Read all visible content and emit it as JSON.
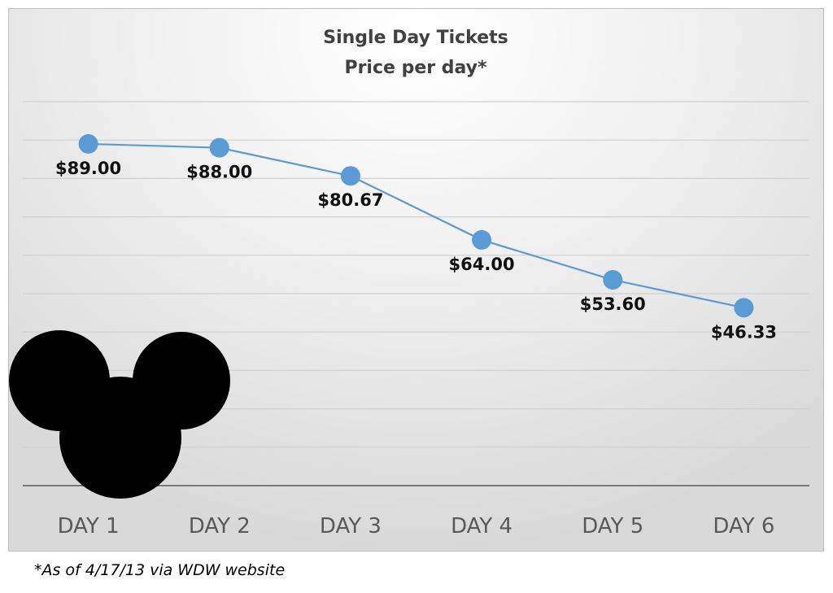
{
  "chart_data": {
    "type": "line",
    "title": "Single Day Tickets",
    "subtitle": "Price per day*",
    "categories": [
      "DAY 1",
      "DAY 2",
      "DAY 3",
      "DAY 4",
      "DAY 5",
      "DAY 6"
    ],
    "values": [
      89.0,
      88.0,
      80.67,
      64.0,
      53.6,
      46.33
    ],
    "data_labels": [
      "$89.00",
      "$88.00",
      "$80.67",
      "$64.00",
      "$53.60",
      "$46.33"
    ],
    "xlabel": "",
    "ylabel": "",
    "ylim": [
      0,
      100
    ],
    "grid_step": 10,
    "grid": true,
    "legend": "none",
    "series_color": "#5b9bd5"
  },
  "footnote": "*As of 4/17/13 via WDW website"
}
